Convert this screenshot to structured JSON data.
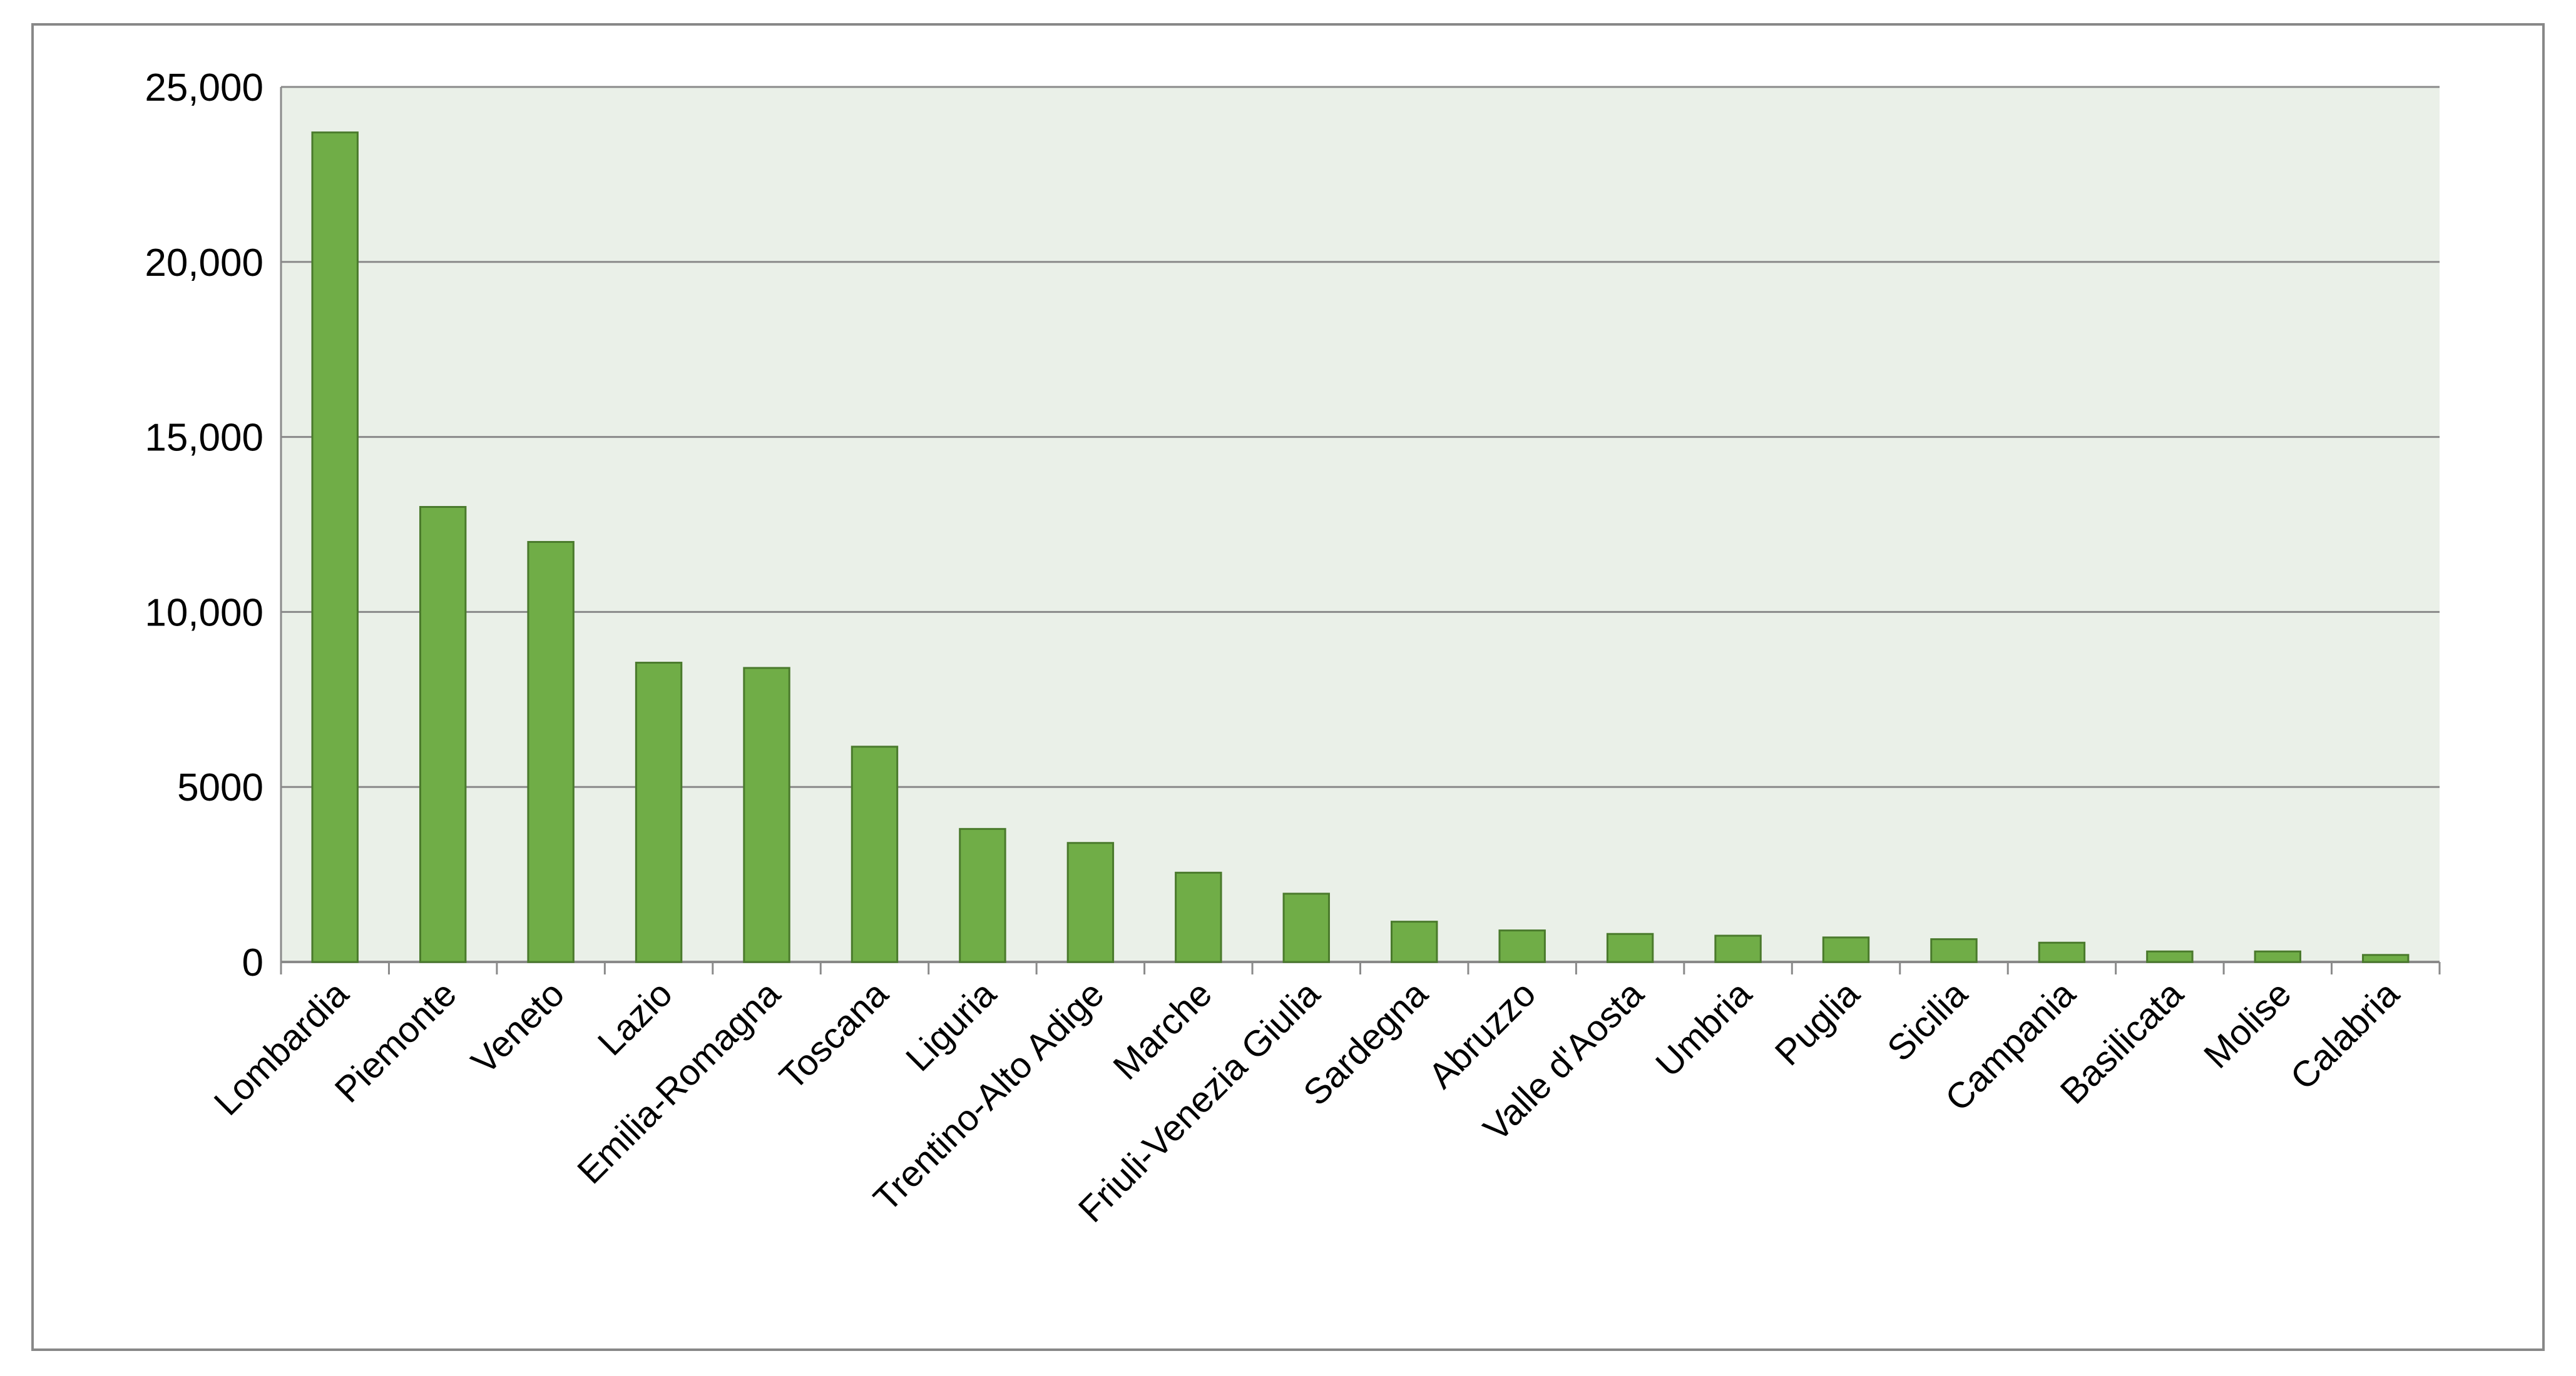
{
  "chart_data": {
    "type": "bar",
    "categories": [
      "Lombardia",
      "Piemonte",
      "Veneto",
      "Lazio",
      "Emilia-Romagna",
      "Toscana",
      "Liguria",
      "Trentino-Alto Adige",
      "Marche",
      "Friuli-Venezia Giulia",
      "Sardegna",
      "Abruzzo",
      "Valle d'Aosta",
      "Umbria",
      "Puglia",
      "Sicilia",
      "Campania",
      "Basilicata",
      "Molise",
      "Calabria"
    ],
    "values": [
      23700,
      13000,
      12000,
      8550,
      8400,
      6150,
      3800,
      3400,
      2550,
      1950,
      1150,
      900,
      800,
      750,
      700,
      650,
      550,
      300,
      300,
      200
    ],
    "color": "#70ad47",
    "ylim": [
      0,
      25000
    ],
    "yticks": [
      0,
      5000,
      {
        "value": 10000,
        "label": "10,000"
      },
      {
        "value": 15000,
        "label": "15,000"
      },
      {
        "value": 20000,
        "label": "20,000"
      },
      {
        "value": 25000,
        "label": "25,000"
      }
    ],
    "grid": true
  }
}
